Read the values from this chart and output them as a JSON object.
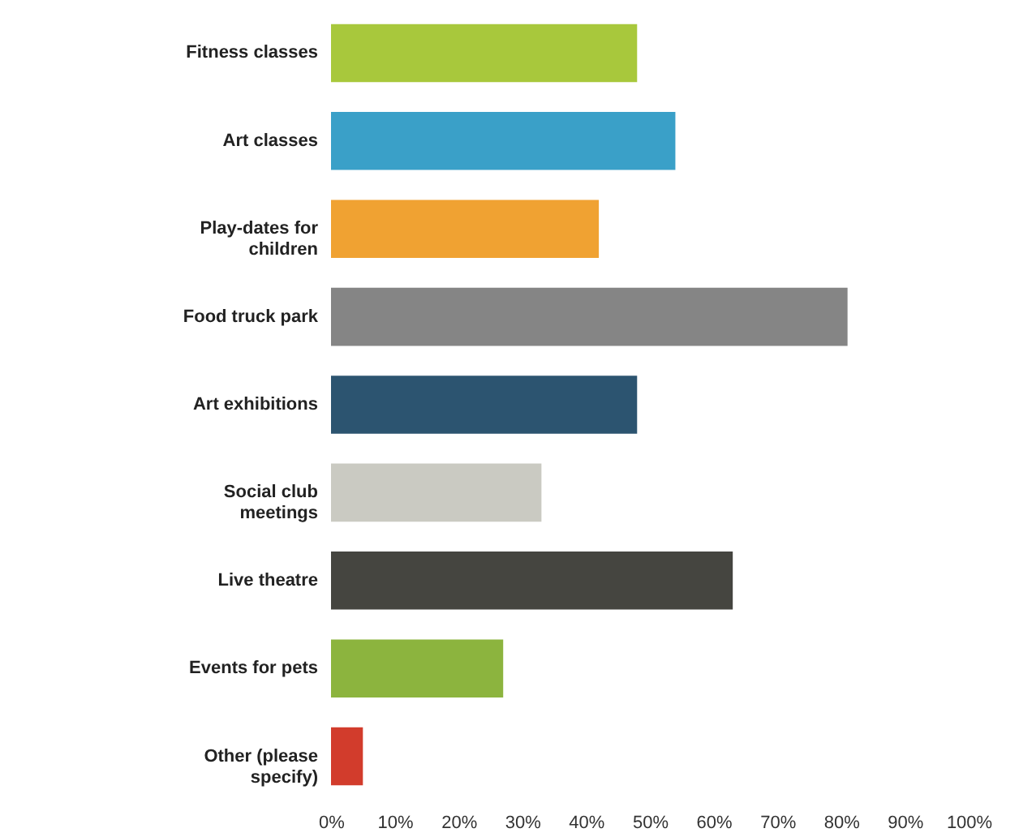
{
  "chart_data": {
    "type": "bar",
    "orientation": "horizontal",
    "categories": [
      "Fitness classes",
      "Art classes",
      "Play-dates for children",
      "Food truck park",
      "Art exhibitions",
      "Social club meetings",
      "Live theatre",
      "Events for pets",
      "Other (please specify)"
    ],
    "values": [
      48,
      54,
      42,
      81,
      48,
      33,
      63,
      27,
      5
    ],
    "colors": [
      "#a8c83c",
      "#3aa0c8",
      "#f0a232",
      "#858585",
      "#2c5470",
      "#cacac2",
      "#454540",
      "#8cb43e",
      "#d23c2c"
    ],
    "xlim": [
      0,
      100
    ],
    "xticks": [
      {
        "value": 0,
        "label": "0%"
      },
      {
        "value": 10,
        "label": "10%"
      },
      {
        "value": 20,
        "label": "20%"
      },
      {
        "value": 30,
        "label": "30%"
      },
      {
        "value": 40,
        "label": "40%"
      },
      {
        "value": 50,
        "label": "50%"
      },
      {
        "value": 60,
        "label": "60%"
      },
      {
        "value": 70,
        "label": "70%"
      },
      {
        "value": 80,
        "label": "80%"
      },
      {
        "value": 90,
        "label": "90%"
      },
      {
        "value": 100,
        "label": "100%"
      }
    ],
    "grid": false
  }
}
